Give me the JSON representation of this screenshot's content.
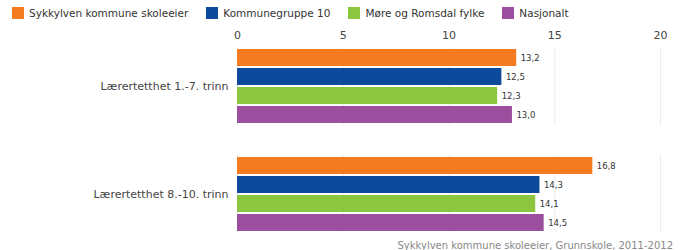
{
  "chart_data": {
    "type": "bar",
    "orientation": "horizontal",
    "caption": "Sykkylven kommune skoleeier, Grunnskole, 2011-2012",
    "categories": [
      "Lærertetthet 1.-7. trinn",
      "Lærertetthet 8.-10. trinn"
    ],
    "series": [
      {
        "name": "Sykkylven kommune skoleeier",
        "color": "#f47b20",
        "values": [
          13.2,
          16.8
        ],
        "value_labels": [
          "13,2",
          "16,8"
        ]
      },
      {
        "name": "Kommunegruppe 10",
        "color": "#0d4a9b",
        "values": [
          12.5,
          14.3
        ],
        "value_labels": [
          "12,5",
          "14,3"
        ]
      },
      {
        "name": "Møre og Romsdal fylke",
        "color": "#8cc63f",
        "values": [
          12.3,
          14.1
        ],
        "value_labels": [
          "12,3",
          "14,1"
        ]
      },
      {
        "name": "Nasjonalt",
        "color": "#9b4f9e",
        "values": [
          13.0,
          14.5
        ],
        "value_labels": [
          "13,0",
          "14,5"
        ]
      }
    ],
    "xlim": [
      0,
      20
    ],
    "xticks": [
      0,
      5,
      10,
      15,
      20
    ],
    "grid": true,
    "data_labels": true,
    "legend": "top"
  }
}
